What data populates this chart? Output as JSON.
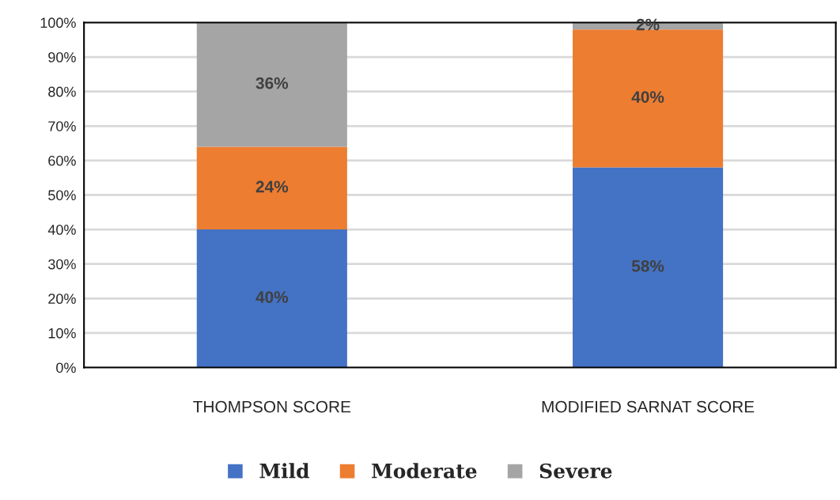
{
  "chart_data": {
    "type": "bar",
    "stacked": true,
    "categories": [
      "THOMPSON SCORE",
      "MODIFIED SARNAT SCORE"
    ],
    "series": [
      {
        "name": "Mild",
        "color": "#4472c4",
        "values": [
          40,
          58
        ],
        "value_labels": [
          "40%",
          "58%"
        ]
      },
      {
        "name": "Moderate",
        "color": "#ed7d31",
        "values": [
          24,
          40
        ],
        "value_labels": [
          "24%",
          "40%"
        ]
      },
      {
        "name": "Severe",
        "color": "#a5a5a5",
        "values": [
          36,
          2
        ],
        "value_labels": [
          "36%",
          "2%"
        ]
      }
    ],
    "ylim": [
      0,
      100
    ],
    "yticks": [
      {
        "value": 0,
        "label": "0%"
      },
      {
        "value": 10,
        "label": "10%"
      },
      {
        "value": 20,
        "label": "20%"
      },
      {
        "value": 30,
        "label": "30%"
      },
      {
        "value": 40,
        "label": "40%"
      },
      {
        "value": 50,
        "label": "50%"
      },
      {
        "value": 60,
        "label": "60%"
      },
      {
        "value": 70,
        "label": "70%"
      },
      {
        "value": 80,
        "label": "80%"
      },
      {
        "value": 90,
        "label": "90%"
      },
      {
        "value": 100,
        "label": "100%"
      }
    ],
    "grid": "y",
    "legend": "bottom"
  }
}
